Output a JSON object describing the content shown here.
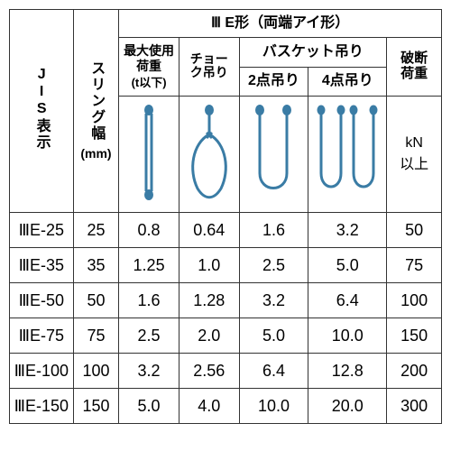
{
  "header": {
    "jis_display": "JIS表示",
    "sling_width": "スリング幅",
    "sling_width_unit": "(mm)",
    "top_group": "Ⅲ E形（両端アイ形）",
    "max_load": "最大使用荷重",
    "max_load_unit": "(t以下)",
    "choker": "チョーク吊り",
    "basket": "バスケット吊り",
    "basket_2pt": "2点吊り",
    "basket_4pt": "4点吊り",
    "breaking": "破断荷重",
    "breaking_unit_1": "kN",
    "breaking_unit_2": "以上"
  },
  "rows": [
    {
      "jis": "ⅢE-25",
      "sling": "25",
      "max": "0.8",
      "choker": "0.64",
      "b2": "1.6",
      "b4": "3.2",
      "break": "50"
    },
    {
      "jis": "ⅢE-35",
      "sling": "35",
      "max": "1.25",
      "choker": "1.0",
      "b2": "2.5",
      "b4": "5.0",
      "break": "75"
    },
    {
      "jis": "ⅢE-50",
      "sling": "50",
      "max": "1.6",
      "choker": "1.28",
      "b2": "3.2",
      "b4": "6.4",
      "break": "100"
    },
    {
      "jis": "ⅢE-75",
      "sling": "75",
      "max": "2.5",
      "choker": "2.0",
      "b2": "5.0",
      "b4": "10.0",
      "break": "150"
    },
    {
      "jis": "ⅢE-100",
      "sling": "100",
      "max": "3.2",
      "choker": "2.56",
      "b2": "6.4",
      "b4": "12.8",
      "break": "200"
    },
    {
      "jis": "ⅢE-150",
      "sling": "150",
      "max": "5.0",
      "choker": "4.0",
      "b2": "10.0",
      "b4": "20.0",
      "break": "300"
    }
  ],
  "colors": {
    "sling_stroke": "#3a7ca5",
    "sling_value": "#c04a2a",
    "border": "#333333",
    "text": "#000000",
    "bg": "#ffffff"
  },
  "fontsizes": {
    "header": 16,
    "data": 18
  }
}
